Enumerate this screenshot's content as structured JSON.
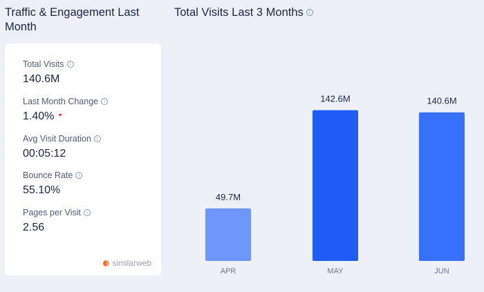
{
  "traffic_panel": {
    "title": "Traffic & Engagement Last Month",
    "metrics": [
      {
        "label": "Total Visits",
        "value": "140.6M"
      },
      {
        "label": "Last Month Change",
        "value": "1.40%",
        "trend": "down"
      },
      {
        "label": "Avg Visit Duration",
        "value": "00:05:12"
      },
      {
        "label": "Bounce Rate",
        "value": "55.10%"
      },
      {
        "label": "Pages per Visit",
        "value": "2.56"
      }
    ],
    "brand": "similarweb"
  },
  "visits_panel": {
    "title": "Total Visits Last 3 Months"
  },
  "icons": {
    "info": "info-icon",
    "trend_down": "down-arrow-icon",
    "brand_logo": "similarweb-logo-icon"
  },
  "colors": {
    "background": "#eef0f7",
    "bar_light": "#6e97fb",
    "bar_dark": "#1f5cf5",
    "bar_mid": "#3670fb",
    "down": "#e0424b"
  },
  "chart_data": {
    "type": "bar",
    "title": "Total Visits Last 3 Months",
    "categories": [
      "APR",
      "MAY",
      "JUN"
    ],
    "values": [
      49.7,
      142.6,
      140.6
    ],
    "value_labels": [
      "49.7M",
      "142.6M",
      "140.6M"
    ],
    "unit": "M",
    "ylim": [
      0,
      160
    ],
    "grid": false,
    "legend": "none"
  }
}
